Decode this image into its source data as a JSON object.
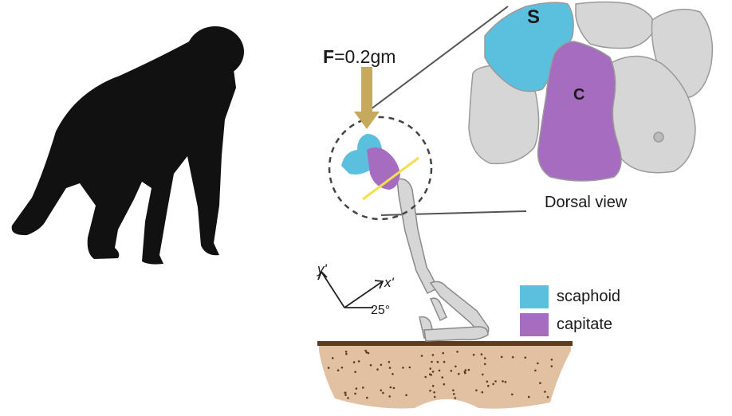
{
  "force": {
    "symbol": "F",
    "rest": "=0.2gm"
  },
  "bones": {
    "scaphoid_letter": "S",
    "capitate_letter": "C"
  },
  "view_label": "Dorsal view",
  "axes": {
    "y_label": "y'",
    "x_label": "x'",
    "angle_label": "25°"
  },
  "legend": [
    {
      "label": "scaphoid",
      "color": "#5bc0de"
    },
    {
      "label": "capitate",
      "color": "#a66cbf"
    }
  ],
  "colors": {
    "silhouette": "#111111",
    "bone_gray": "#d6d6d6",
    "arrow": "#c6a95a",
    "cut_line": "#f1e04c",
    "soil": "#e2c1a3",
    "soil_edge": "#5e3a1e"
  }
}
